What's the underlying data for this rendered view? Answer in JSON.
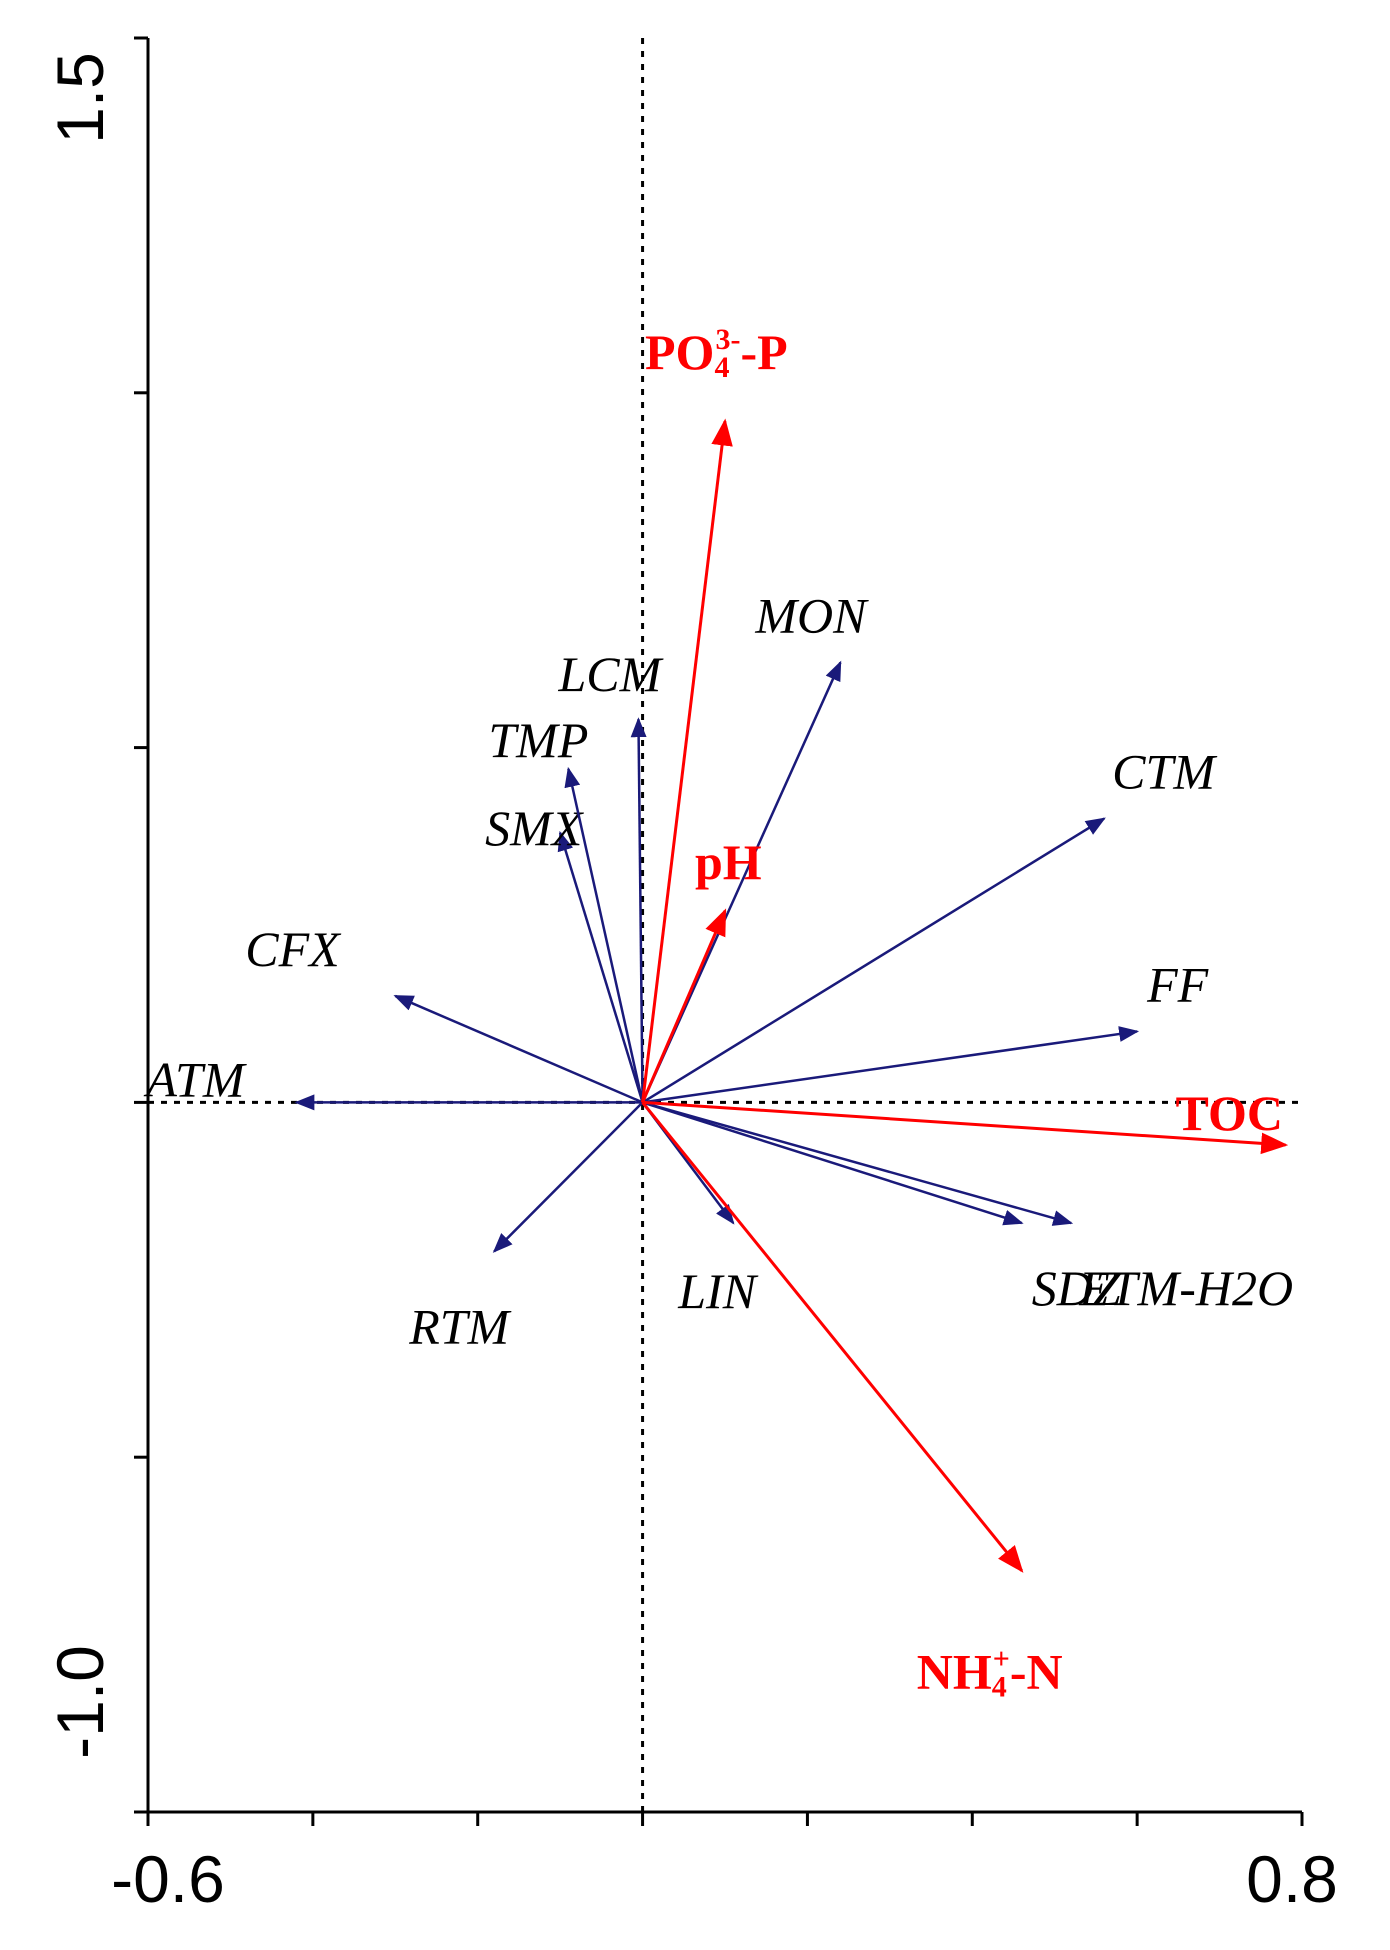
{
  "chart_data": {
    "type": "scatter",
    "subtype": "ordination-biplot",
    "title": "",
    "xlabel": "",
    "ylabel": "",
    "xlim": [
      -0.6,
      0.8
    ],
    "ylim": [
      -1.0,
      1.5
    ],
    "x_tick_labels": [
      "-0.6",
      "0.8"
    ],
    "y_tick_labels": [
      "1.5",
      "-1.0"
    ],
    "x_minor_ticks": [
      -0.6,
      -0.4,
      -0.2,
      0.0,
      0.2,
      0.4,
      0.6,
      0.8
    ],
    "y_minor_ticks": [
      -1.0,
      -0.5,
      0.0,
      0.5,
      1.0,
      1.5
    ],
    "origin_lines": {
      "x0": true,
      "y0": true,
      "style": "dotted"
    },
    "colors": {
      "species": "#1a1a7a",
      "environment": "#ff0000"
    },
    "species_arrows": [
      {
        "label": "ATM",
        "x": -0.42,
        "y": 0.0
      },
      {
        "label": "CFX",
        "x": -0.3,
        "y": 0.15
      },
      {
        "label": "SMX",
        "x": -0.1,
        "y": 0.38
      },
      {
        "label": "TMP",
        "x": -0.09,
        "y": 0.47
      },
      {
        "label": "LCM",
        "x": -0.005,
        "y": 0.54
      },
      {
        "label": "MON",
        "x": 0.24,
        "y": 0.62
      },
      {
        "label": "CTM",
        "x": 0.56,
        "y": 0.4
      },
      {
        "label": "FF",
        "x": 0.6,
        "y": 0.1
      },
      {
        "label": "SDZ",
        "x": 0.46,
        "y": -0.17
      },
      {
        "label": "ETM-H2O",
        "x": 0.52,
        "y": -0.17
      },
      {
        "label": "LIN",
        "x": 0.11,
        "y": -0.17
      },
      {
        "label": "RTM",
        "x": -0.18,
        "y": -0.21
      }
    ],
    "environment_arrows": [
      {
        "label": "PO",
        "sub": "4",
        "sup": "3-",
        "tail": "-P",
        "x": 0.1,
        "y": 0.96
      },
      {
        "label": "pH",
        "sub": "",
        "sup": "",
        "tail": "",
        "x": 0.1,
        "y": 0.27
      },
      {
        "label": "TOC",
        "sub": "",
        "sup": "",
        "tail": "",
        "x": 0.78,
        "y": -0.06
      },
      {
        "label": "NH",
        "sub": "4",
        "sup": "+",
        "tail": "-N",
        "x": 0.46,
        "y": -0.66
      }
    ]
  }
}
